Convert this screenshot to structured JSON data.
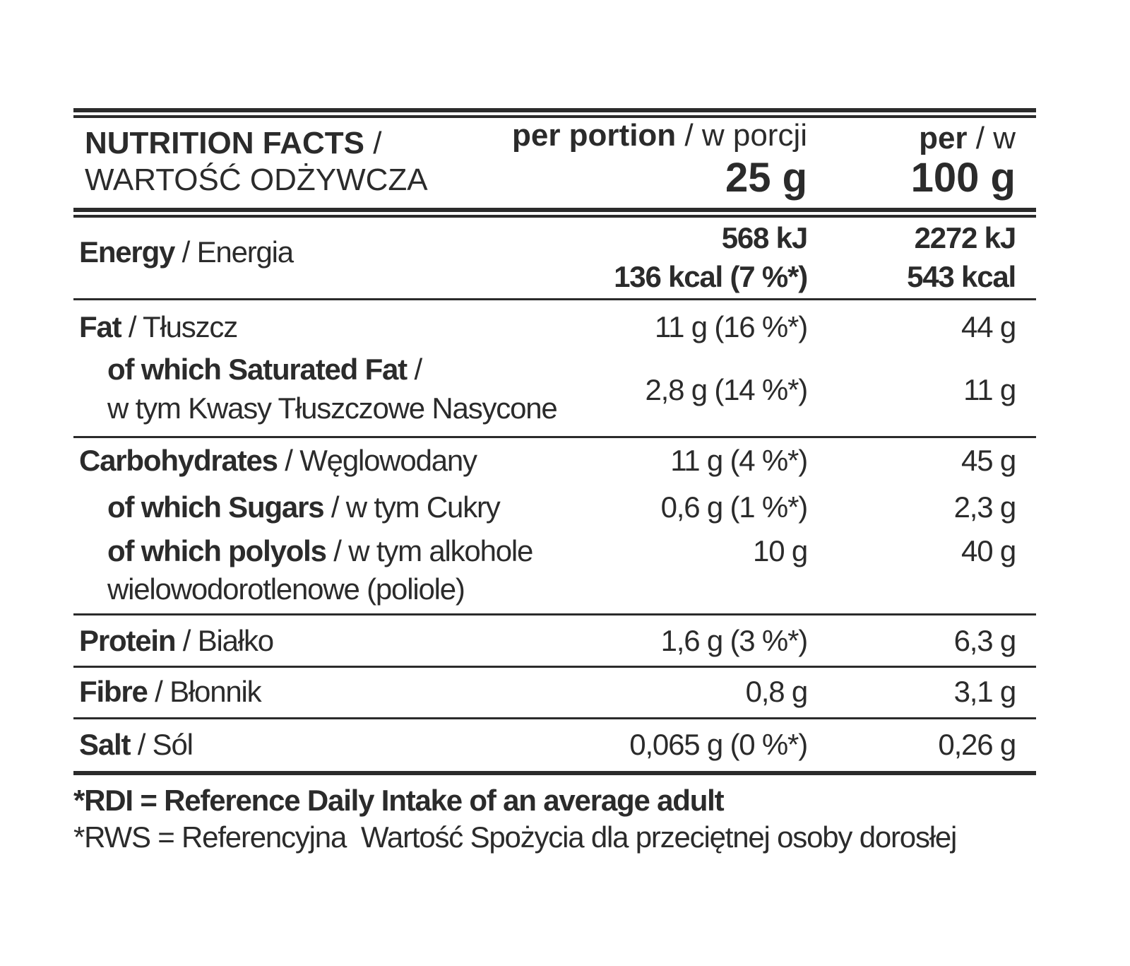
{
  "header": {
    "title_en": "NUTRITION FACTS",
    "title_sep": " /",
    "title_pl": "WARTOŚĆ ODŻYWCZA",
    "col1_en": "per portion",
    "col1_pl": " / w porcji",
    "col1_amount": "25 g",
    "col2_en": "per",
    "col2_pl": " / w",
    "col2_amount": "100 g"
  },
  "rows": [
    {
      "en": "Energy",
      "pl": " / Energia",
      "portion": [
        "568 kJ",
        "136 kcal (7 %*)"
      ],
      "per100": [
        "2272 kJ",
        "543 kcal"
      ]
    },
    {
      "en": "Fat",
      "pl": " / Tłuszcz",
      "portion": "11 g (16 %*)",
      "per100": "44 g"
    },
    {
      "en": "of which Saturated Fat",
      "pl_sep": " /",
      "pl": "w tym Kwasy Tłuszczowe Nasycone",
      "portion": "2,8 g (14 %*)",
      "per100": "11 g"
    },
    {
      "en": "Carbohydrates",
      "pl": " / Węglowodany",
      "portion": "11 g (4 %*)",
      "per100": "45 g"
    },
    {
      "en": "of which Sugars",
      "pl": " / w tym Cukry",
      "portion": "0,6 g (1 %*)",
      "per100": "2,3 g"
    },
    {
      "en": "of which polyols",
      "pl": " / w tym alkohole",
      "pl2": "wielowodorotlenowe (poliole)",
      "portion": "10 g",
      "per100": "40 g"
    },
    {
      "en": "Protein",
      "pl": " / Białko",
      "portion": "1,6 g (3 %*)",
      "per100": "6,3 g"
    },
    {
      "en": "Fibre",
      "pl": " / Błonnik",
      "portion": "0,8 g",
      "per100": "3,1 g"
    },
    {
      "en": "Salt",
      "pl": " / Sól",
      "portion": "0,065 g (0 %*)",
      "per100": "0,26 g"
    }
  ],
  "footer": {
    "rdi_en": "*RDI = Reference Daily Intake of an average adult",
    "rws_pl": "*RWS = Referencyjna  Wartość Spożycia dla przeciętnej osoby dorosłej"
  }
}
